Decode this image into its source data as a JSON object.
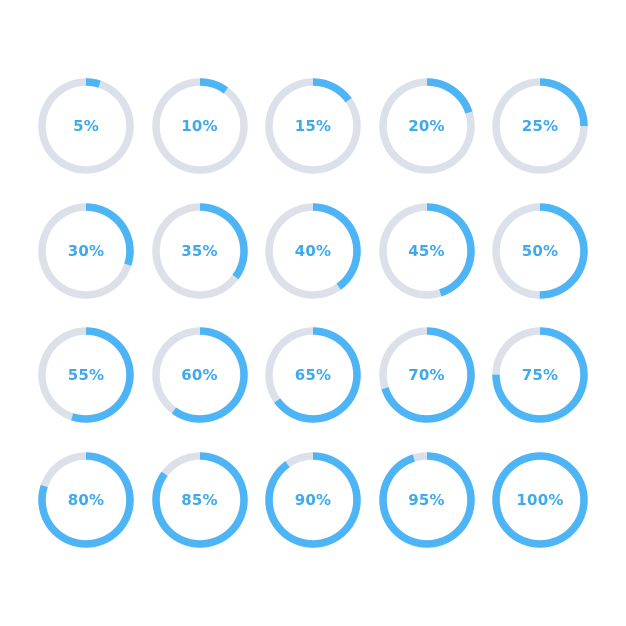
{
  "colors": {
    "track": "#DCE1E9",
    "progress": "#4DB4F5",
    "label": "#3FA9EC",
    "background": "#FFFFFF"
  },
  "rings": [
    {
      "label": "5%",
      "value": 5
    },
    {
      "label": "10%",
      "value": 10
    },
    {
      "label": "15%",
      "value": 15
    },
    {
      "label": "20%",
      "value": 20
    },
    {
      "label": "25%",
      "value": 25
    },
    {
      "label": "30%",
      "value": 30
    },
    {
      "label": "35%",
      "value": 35
    },
    {
      "label": "40%",
      "value": 40
    },
    {
      "label": "45%",
      "value": 45
    },
    {
      "label": "50%",
      "value": 50
    },
    {
      "label": "55%",
      "value": 55
    },
    {
      "label": "60%",
      "value": 60
    },
    {
      "label": "65%",
      "value": 65
    },
    {
      "label": "70%",
      "value": 70
    },
    {
      "label": "75%",
      "value": 75
    },
    {
      "label": "80%",
      "value": 80
    },
    {
      "label": "85%",
      "value": 85
    },
    {
      "label": "90%",
      "value": 90
    },
    {
      "label": "95%",
      "value": 95
    },
    {
      "label": "100%",
      "value": 100
    }
  ]
}
